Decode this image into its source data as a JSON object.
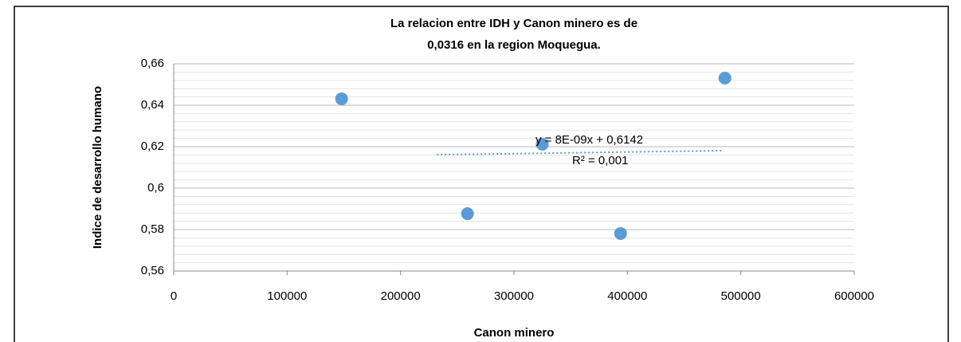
{
  "chart_data": {
    "type": "scatter",
    "title": [
      "La relacion entre IDH y Canon minero es de",
      "0,0316 en la region Moquegua."
    ],
    "x_label": "Canon minero",
    "y_label": "Indice de desarrollo humano",
    "x": [
      148000,
      259000,
      325000,
      394000,
      486000
    ],
    "values": [
      0.6431,
      0.5877,
      0.6212,
      0.5781,
      0.6531
    ],
    "color": "#5b9bd5",
    "xlim": [
      0,
      600000
    ],
    "xticks": [
      0,
      100000,
      200000,
      300000,
      400000,
      500000,
      600000
    ],
    "ylim": [
      0.56,
      0.66
    ],
    "yticks": [
      {
        "value": 0.56,
        "label": "0,56"
      },
      {
        "value": 0.58,
        "label": "0,58"
      },
      {
        "value": 0.6,
        "label": "0,6"
      },
      {
        "value": 0.62,
        "label": "0,62"
      },
      {
        "value": 0.64,
        "label": "0,64"
      },
      {
        "value": 0.66,
        "label": "0,66"
      }
    ],
    "minor_yticks": [
      0.564,
      0.568,
      0.572,
      0.576,
      0.584,
      0.588,
      0.592,
      0.596,
      0.604,
      0.608,
      0.612,
      0.616,
      0.624,
      0.628,
      0.632,
      0.636,
      0.644,
      0.648,
      0.652,
      0.656
    ],
    "grid": true,
    "trendline": {
      "x": [
        232000,
        483000
      ],
      "values": [
        0.6161,
        0.6181
      ],
      "equation": "y = 8E-09x + 0,6142",
      "r_squared": "R² = 0,001"
    }
  }
}
